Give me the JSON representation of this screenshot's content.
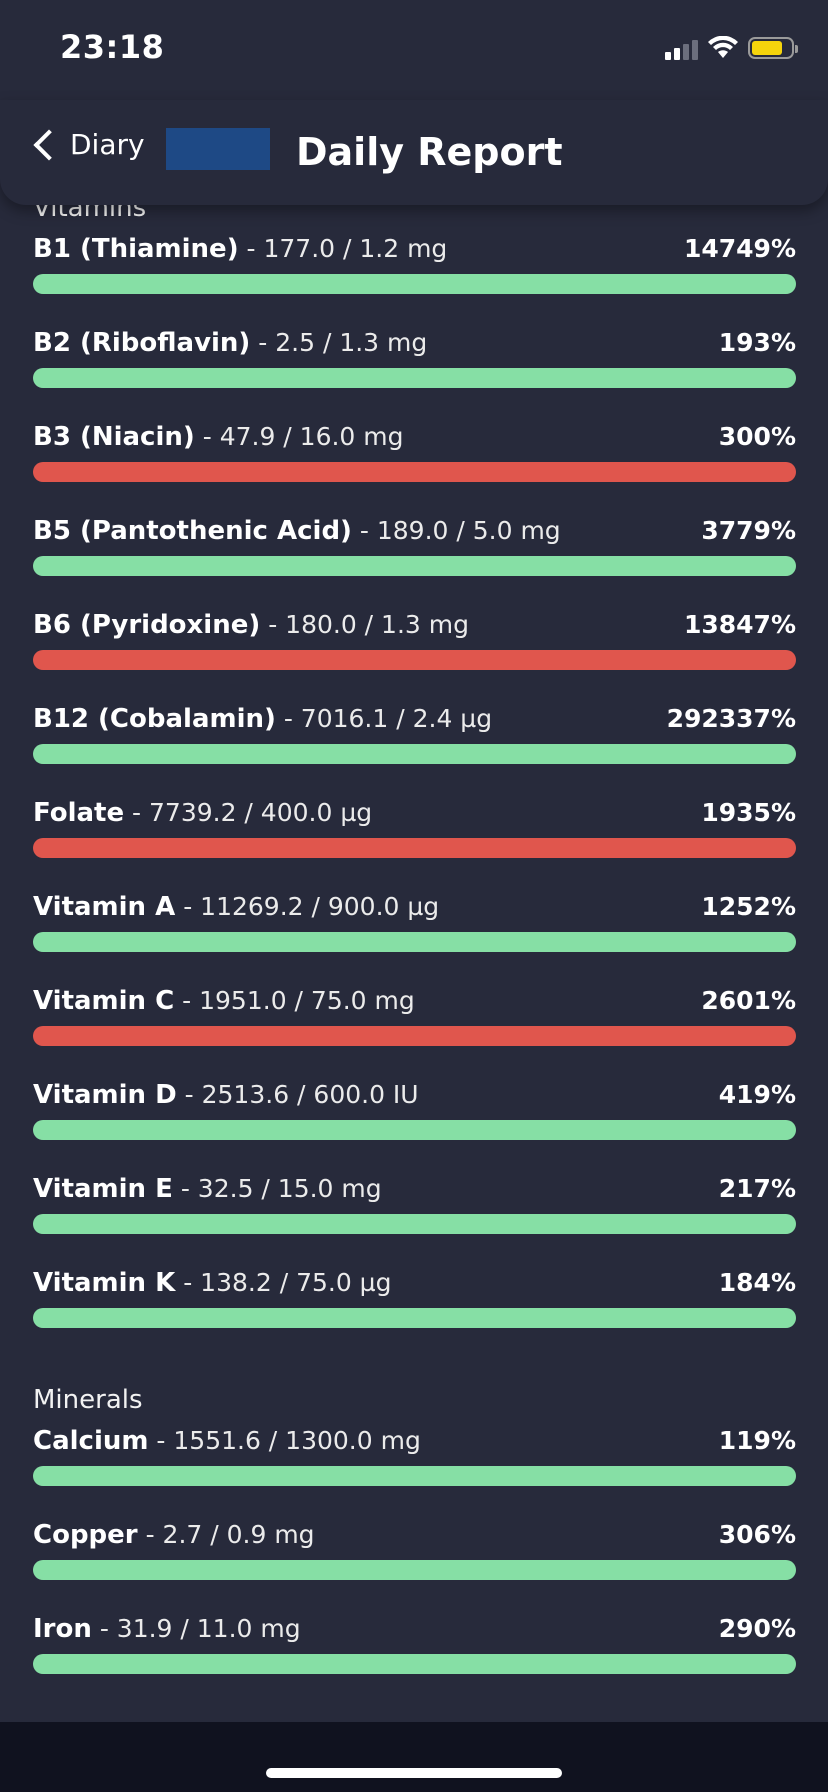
{
  "status_bar": {
    "time": "23:18",
    "icons": [
      "cellular-signal-icon",
      "wifi-icon",
      "battery-icon"
    ],
    "battery_color": "#f5d40c"
  },
  "header": {
    "back_label": "Diary",
    "title": "Daily Report",
    "logo_color": "#1e4985"
  },
  "colors": {
    "background": "#272a3b",
    "bar_green": "#86dfa5",
    "bar_red": "#e0564d"
  },
  "sections": [
    {
      "title": "Vitamins",
      "items": [
        {
          "name": "B1 (Thiamine)",
          "amount": " - 177.0 / 1.2 mg",
          "percent": "14749%",
          "status": "green"
        },
        {
          "name": "B2 (Riboflavin)",
          "amount": " - 2.5 / 1.3 mg",
          "percent": "193%",
          "status": "green"
        },
        {
          "name": "B3 (Niacin)",
          "amount": " - 47.9 / 16.0 mg",
          "percent": "300%",
          "status": "red"
        },
        {
          "name": "B5 (Pantothenic Acid)",
          "amount": " - 189.0 / 5.0 mg",
          "percent": "3779%",
          "status": "green"
        },
        {
          "name": "B6 (Pyridoxine)",
          "amount": " - 180.0 / 1.3 mg",
          "percent": "13847%",
          "status": "red"
        },
        {
          "name": "B12 (Cobalamin)",
          "amount": " - 7016.1 / 2.4 µg",
          "percent": "292337%",
          "status": "green"
        },
        {
          "name": "Folate",
          "amount": " - 7739.2 / 400.0 µg",
          "percent": "1935%",
          "status": "red"
        },
        {
          "name": "Vitamin A",
          "amount": " - 11269.2 / 900.0 µg",
          "percent": "1252%",
          "status": "green"
        },
        {
          "name": "Vitamin C",
          "amount": " - 1951.0 / 75.0 mg",
          "percent": "2601%",
          "status": "red"
        },
        {
          "name": "Vitamin D",
          "amount": " - 2513.6 / 600.0 IU",
          "percent": "419%",
          "status": "green"
        },
        {
          "name": "Vitamin E",
          "amount": " - 32.5 / 15.0 mg",
          "percent": "217%",
          "status": "green"
        },
        {
          "name": "Vitamin K",
          "amount": " - 138.2 / 75.0 µg",
          "percent": "184%",
          "status": "green"
        }
      ]
    },
    {
      "title": "Minerals",
      "items": [
        {
          "name": "Calcium",
          "amount": " - 1551.6 / 1300.0 mg",
          "percent": "119%",
          "status": "green"
        },
        {
          "name": "Copper",
          "amount": " - 2.7 / 0.9 mg",
          "percent": "306%",
          "status": "green"
        },
        {
          "name": "Iron",
          "amount": " - 31.9 / 11.0 mg",
          "percent": "290%",
          "status": "green"
        }
      ]
    }
  ]
}
